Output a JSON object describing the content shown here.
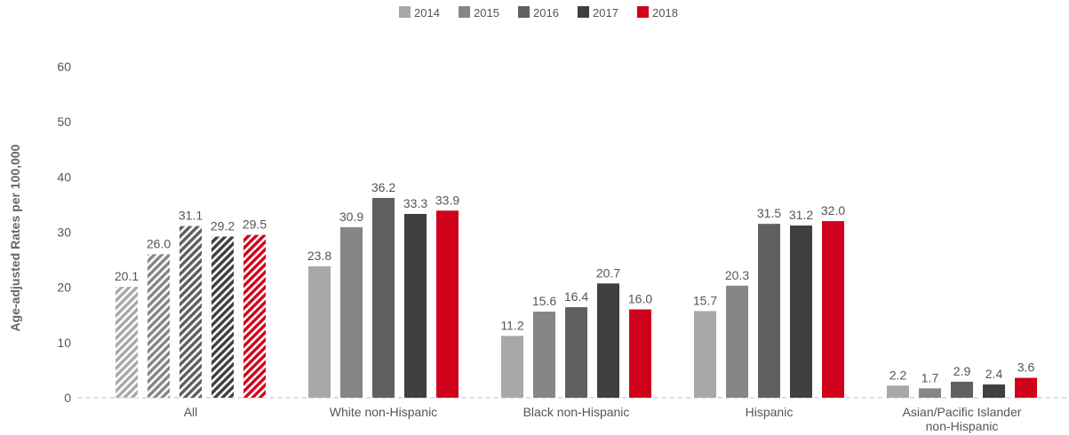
{
  "chart_data": {
    "type": "bar",
    "title": "",
    "xlabel": "",
    "ylabel": "Age-adjusted Rates per 100,000",
    "ylim": [
      0,
      60
    ],
    "yticks": [
      0,
      10,
      20,
      30,
      40,
      50,
      60
    ],
    "grid": false,
    "legend_position": "top-center",
    "categories": [
      [
        "All"
      ],
      [
        "White non-Hispanic"
      ],
      [
        "Black non-Hispanic"
      ],
      [
        "Hispanic"
      ],
      [
        "Asian/Pacific Islander",
        "non-Hispanic"
      ]
    ],
    "hatched_categories": [
      "All"
    ],
    "series": [
      {
        "name": "2014",
        "color": "#a8a8a8",
        "values": [
          20.1,
          23.8,
          11.2,
          15.7,
          2.2
        ]
      },
      {
        "name": "2015",
        "color": "#868686",
        "values": [
          26.0,
          30.9,
          15.6,
          20.3,
          1.7
        ]
      },
      {
        "name": "2016",
        "color": "#606060",
        "values": [
          31.1,
          36.2,
          16.4,
          31.5,
          2.9
        ]
      },
      {
        "name": "2017",
        "color": "#3f3f3f",
        "values": [
          29.2,
          33.3,
          20.7,
          31.2,
          2.4
        ]
      },
      {
        "name": "2018",
        "color": "#d0021b",
        "values": [
          29.5,
          33.9,
          16.0,
          32.0,
          3.6
        ]
      }
    ]
  }
}
